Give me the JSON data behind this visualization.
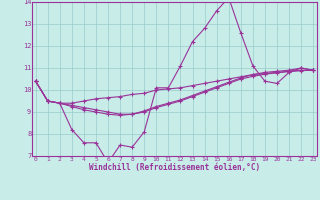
{
  "xlabel": "Windchill (Refroidissement éolien,°C)",
  "x": [
    0,
    1,
    2,
    3,
    4,
    5,
    6,
    7,
    8,
    9,
    10,
    11,
    12,
    13,
    14,
    15,
    16,
    17,
    18,
    19,
    20,
    21,
    22,
    23
  ],
  "line1": [
    10.4,
    9.5,
    9.4,
    8.2,
    7.6,
    7.6,
    6.7,
    7.5,
    7.4,
    8.1,
    10.1,
    10.1,
    11.1,
    12.2,
    12.8,
    13.6,
    14.2,
    12.6,
    11.1,
    10.4,
    10.3,
    10.8,
    11.0,
    10.9
  ],
  "line2": [
    10.4,
    9.5,
    9.4,
    9.4,
    9.5,
    9.6,
    9.65,
    9.7,
    9.8,
    9.85,
    10.0,
    10.05,
    10.1,
    10.2,
    10.3,
    10.4,
    10.5,
    10.6,
    10.7,
    10.75,
    10.8,
    10.85,
    10.9,
    10.9
  ],
  "line3": [
    10.4,
    9.5,
    9.4,
    9.3,
    9.2,
    9.1,
    9.0,
    8.9,
    8.9,
    9.05,
    9.25,
    9.4,
    9.55,
    9.75,
    9.95,
    10.15,
    10.35,
    10.55,
    10.7,
    10.8,
    10.85,
    10.9,
    11.0,
    10.9
  ],
  "line4": [
    10.4,
    9.5,
    9.4,
    9.25,
    9.1,
    9.0,
    8.9,
    8.85,
    8.9,
    9.0,
    9.2,
    9.35,
    9.5,
    9.7,
    9.9,
    10.1,
    10.3,
    10.5,
    10.62,
    10.72,
    10.78,
    10.84,
    10.88,
    10.9
  ],
  "bg_color": "#c8ece8",
  "line_color": "#993399",
  "grid_color": "#99cccc",
  "ylim": [
    7,
    14
  ],
  "xlim": [
    0,
    23
  ],
  "yticks": [
    7,
    8,
    9,
    10,
    11,
    12,
    13,
    14
  ],
  "xticks": [
    0,
    1,
    2,
    3,
    4,
    5,
    6,
    7,
    8,
    9,
    10,
    11,
    12,
    13,
    14,
    15,
    16,
    17,
    18,
    19,
    20,
    21,
    22,
    23
  ]
}
